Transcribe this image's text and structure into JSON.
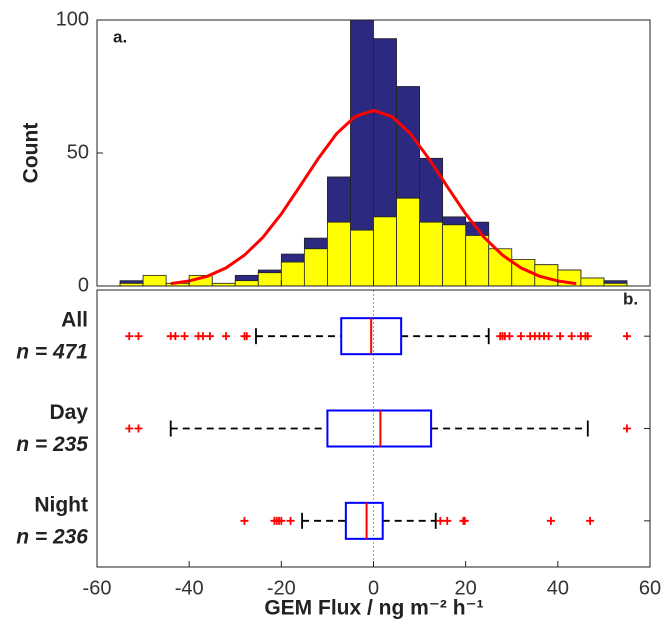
{
  "chart_data": [
    {
      "type": "histogram",
      "panel_label": "a.",
      "ylabel": "Count",
      "bins": [
        -55,
        -50,
        -45,
        -40,
        -35,
        -30,
        -25,
        -20,
        -15,
        -10,
        -5,
        0,
        5,
        10,
        15,
        20,
        25,
        30,
        35,
        40,
        45,
        50,
        55
      ],
      "series": [
        {
          "color": "#2b2a80",
          "values": [
            2,
            3,
            1,
            3,
            1,
            4,
            6,
            12,
            18,
            41,
            100,
            93,
            75,
            48,
            26,
            24,
            11,
            10,
            8,
            6,
            3,
            2
          ]
        },
        {
          "color": "#ffff00",
          "values": [
            1,
            4,
            1,
            4,
            1,
            2,
            5,
            9,
            14,
            24,
            21,
            26,
            33,
            24,
            23,
            19,
            14,
            10,
            8,
            6,
            3,
            1
          ]
        }
      ],
      "curve": {
        "color": "#ff0000",
        "x": [
          -44,
          -40,
          -36,
          -32,
          -28,
          -24,
          -20,
          -16,
          -12,
          -8,
          -4,
          0,
          4,
          8,
          12,
          16,
          20,
          24,
          28,
          32,
          36,
          40,
          44
        ],
        "values": [
          0.9,
          1.9,
          3.7,
          6.8,
          11.6,
          18.3,
          27.1,
          37.4,
          47.9,
          57.3,
          63.7,
          66,
          63.7,
          57.3,
          47.9,
          37.4,
          27.1,
          18.3,
          11.6,
          6.8,
          3.7,
          1.9,
          0.9
        ]
      },
      "xlim": [
        -60,
        60
      ],
      "ylim": [
        0,
        100
      ],
      "yticks": [
        0,
        50,
        100
      ]
    },
    {
      "type": "box",
      "panel_label": "b.",
      "xlabel": "GEM Flux / ng m⁻² h⁻¹",
      "categories": [
        "All",
        "Day",
        "Night"
      ],
      "n_labels": [
        "n = 471",
        "n = 235",
        "n = 236"
      ],
      "box_color": "#0000ff",
      "median_color": "#ff0000",
      "outlier_color": "#ff0000",
      "boxes": [
        {
          "whisker_low": -25.5,
          "q1": -7,
          "median": -0.5,
          "q3": 6,
          "whisker_high": 25,
          "outliers": [
            -53,
            -51,
            -44,
            -43,
            -41,
            -38,
            -37,
            -35.5,
            -32,
            -28,
            -27.5,
            27.5,
            28,
            28.5,
            29.5,
            32,
            34,
            35,
            36,
            37,
            38,
            40.5,
            43,
            45,
            46,
            46.5,
            55
          ]
        },
        {
          "whisker_low": -44,
          "q1": -10,
          "median": 1.5,
          "q3": 12.5,
          "whisker_high": 46.5,
          "outliers": [
            -53,
            -51,
            55
          ]
        },
        {
          "whisker_low": -15.5,
          "q1": -6,
          "median": -1.5,
          "q3": 2,
          "whisker_high": 13.5,
          "outliers": [
            -28,
            -21.5,
            -21,
            -20.5,
            -20,
            -18,
            14.5,
            16,
            19.5,
            19.8,
            38.5,
            47
          ]
        }
      ],
      "xlim": [
        -60,
        60
      ],
      "xticks": [
        -60,
        -40,
        -20,
        0,
        20,
        40,
        60
      ]
    }
  ]
}
